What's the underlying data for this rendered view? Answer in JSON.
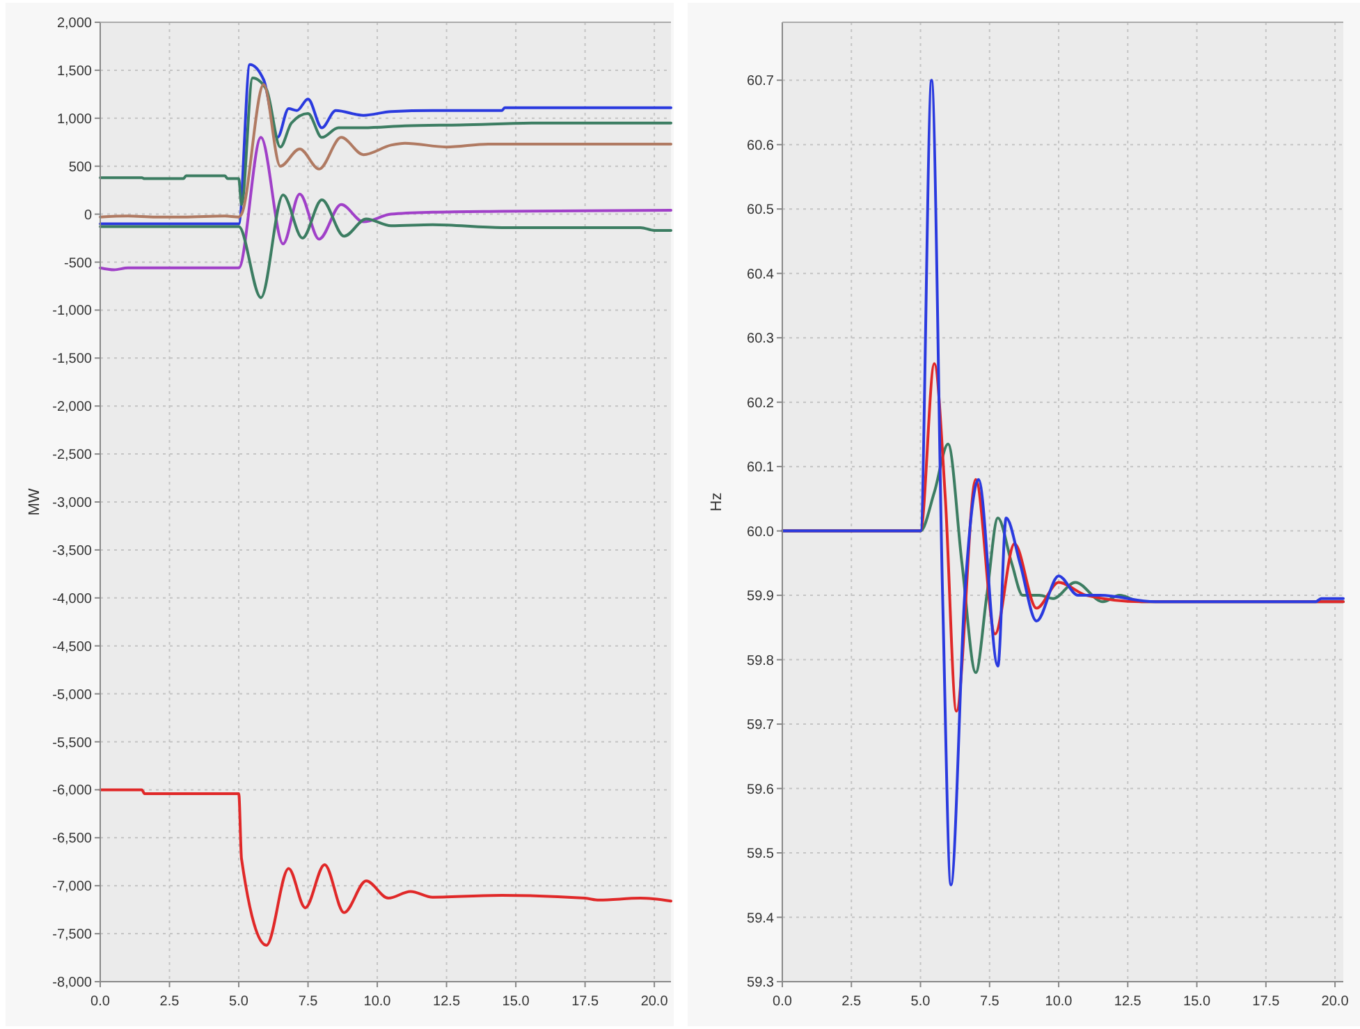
{
  "chart_data": [
    {
      "type": "line",
      "ylabel": "MW",
      "xlim": [
        0,
        20.6
      ],
      "ylim": [
        -8000,
        2000
      ],
      "xticks": [
        {
          "value": 0,
          "label": "0.0"
        },
        {
          "value": 2.5,
          "label": "2.5"
        },
        {
          "value": 5,
          "label": "5.0"
        },
        {
          "value": 7.5,
          "label": "7.5"
        },
        {
          "value": 10,
          "label": "10.0"
        },
        {
          "value": 12.5,
          "label": "12.5"
        },
        {
          "value": 15,
          "label": "15.0"
        },
        {
          "value": 17.5,
          "label": "17.5"
        },
        {
          "value": 20,
          "label": "20.0"
        }
      ],
      "yticks": [
        {
          "value": 2000,
          "label": "2,000"
        },
        {
          "value": 1500,
          "label": "1,500"
        },
        {
          "value": 1000,
          "label": "1,000"
        },
        500,
        0,
        -500,
        {
          "value": -1000,
          "label": "-1,000"
        },
        {
          "value": -1500,
          "label": "-1,500"
        },
        {
          "value": -2000,
          "label": "-2,000"
        },
        {
          "value": -2500,
          "label": "-2,500"
        },
        {
          "value": -3000,
          "label": "-3,000"
        },
        {
          "value": -3500,
          "label": "-3,500"
        },
        {
          "value": -4000,
          "label": "-4,000"
        },
        {
          "value": -4500,
          "label": "-4,500"
        },
        {
          "value": -5000,
          "label": "-5,000"
        },
        {
          "value": -5500,
          "label": "-5,500"
        },
        {
          "value": -6000,
          "label": "-6,000"
        },
        {
          "value": -6500,
          "label": "-6,500"
        },
        {
          "value": -7000,
          "label": "-7,000"
        },
        {
          "value": -7500,
          "label": "-7,500"
        },
        {
          "value": -8000,
          "label": "-8,000"
        }
      ],
      "grid": true,
      "line_style": "solid",
      "marker": "none",
      "series": [
        {
          "color": "#2a3adf",
          "x": [
            0,
            5,
            5.4,
            5.9,
            6.4,
            6.8,
            7.1,
            7.5,
            8,
            8.5,
            9.5,
            10.5,
            12,
            14.5,
            14.6,
            20.6
          ],
          "values": [
            -100,
            -100,
            1560,
            1400,
            800,
            1100,
            1080,
            1200,
            900,
            1080,
            1030,
            1070,
            1080,
            1080,
            1110,
            1110
          ]
        },
        {
          "color": "#3c7d62",
          "x": [
            0,
            1.5,
            1.6,
            3,
            3.1,
            4.5,
            4.6,
            5,
            5.1,
            5.5,
            6,
            6.5,
            6.9,
            7.5,
            8,
            8.6,
            9.5,
            11,
            13,
            16,
            20.6
          ],
          "values": [
            380,
            380,
            370,
            370,
            400,
            400,
            370,
            370,
            100,
            1420,
            1300,
            700,
            950,
            1050,
            800,
            900,
            900,
            920,
            930,
            950,
            950
          ]
        },
        {
          "color": "#b07a62",
          "x": [
            0,
            1,
            2,
            3,
            4.5,
            5,
            5.1,
            5.9,
            6.5,
            7.2,
            7.9,
            8.7,
            9.5,
            10.5,
            11,
            12.5,
            14,
            20.6
          ],
          "values": [
            -30,
            -20,
            -30,
            -30,
            -20,
            -30,
            0,
            1350,
            500,
            680,
            470,
            800,
            620,
            720,
            740,
            700,
            730,
            730
          ]
        },
        {
          "color": "#a040c8",
          "x": [
            0,
            0.5,
            1,
            5,
            5.8,
            6.6,
            7.2,
            7.9,
            8.7,
            9.5,
            10.5,
            12,
            14.5,
            20.6
          ],
          "values": [
            -560,
            -580,
            -560,
            -560,
            800,
            -310,
            210,
            -260,
            100,
            -80,
            0,
            20,
            30,
            40
          ]
        },
        {
          "color": "#3c7d62",
          "x": [
            0,
            5,
            5.8,
            6.6,
            7.3,
            8,
            8.8,
            9.6,
            10.5,
            12,
            14.5,
            19.5,
            20,
            20.6
          ],
          "values": [
            -130,
            -130,
            -870,
            200,
            -250,
            150,
            -230,
            -50,
            -120,
            -110,
            -140,
            -140,
            -170,
            -170
          ]
        },
        {
          "color": "#e02828",
          "x": [
            0,
            1.5,
            1.6,
            5,
            5.1,
            6,
            6.8,
            7.4,
            8.1,
            8.8,
            9.6,
            10.4,
            11.2,
            12,
            14.5,
            17.5,
            18,
            19.5,
            20.6
          ],
          "values": [
            -6000,
            -6000,
            -6040,
            -6040,
            -6720,
            -7620,
            -6820,
            -7230,
            -6780,
            -7280,
            -6950,
            -7130,
            -7060,
            -7120,
            -7100,
            -7130,
            -7150,
            -7130,
            -7160
          ]
        }
      ]
    },
    {
      "type": "line",
      "ylabel": "Hz",
      "xlim": [
        0,
        20.3
      ],
      "ylim": [
        59.3,
        60.79
      ],
      "xticks": [
        {
          "value": 0,
          "label": "0.0"
        },
        {
          "value": 2.5,
          "label": "2.5"
        },
        {
          "value": 5,
          "label": "5.0"
        },
        {
          "value": 7.5,
          "label": "7.5"
        },
        {
          "value": 10,
          "label": "10.0"
        },
        {
          "value": 12.5,
          "label": "12.5"
        },
        {
          "value": 15,
          "label": "15.0"
        },
        {
          "value": 17.5,
          "label": "17.5"
        },
        {
          "value": 20,
          "label": "20.0"
        }
      ],
      "yticks": [
        {
          "value": 60.7,
          "label": "60.7"
        },
        {
          "value": 60.6,
          "label": "60.6"
        },
        {
          "value": 60.5,
          "label": "60.5"
        },
        {
          "value": 60.4,
          "label": "60.4"
        },
        {
          "value": 60.3,
          "label": "60.3"
        },
        {
          "value": 60.2,
          "label": "60.2"
        },
        {
          "value": 60.1,
          "label": "60.1"
        },
        {
          "value": 60,
          "label": "60.0"
        },
        {
          "value": 59.9,
          "label": "59.9"
        },
        {
          "value": 59.8,
          "label": "59.8"
        },
        {
          "value": 59.7,
          "label": "59.7"
        },
        {
          "value": 59.6,
          "label": "59.6"
        },
        {
          "value": 59.5,
          "label": "59.5"
        },
        {
          "value": 59.4,
          "label": "59.4"
        },
        {
          "value": 59.3,
          "label": "59.3"
        }
      ],
      "grid": true,
      "line_style": "solid",
      "marker": "none",
      "series": [
        {
          "color": "#3c7d62",
          "x": [
            0,
            5,
            5.5,
            6,
            6.5,
            7,
            7.4,
            7.8,
            8.3,
            8.7,
            9.3,
            9.8,
            10.6,
            11.6,
            12.2,
            13,
            20.3
          ],
          "values": [
            60,
            60,
            60.06,
            60.135,
            59.95,
            59.78,
            59.9,
            60.02,
            59.95,
            59.9,
            59.9,
            59.895,
            59.92,
            59.89,
            59.9,
            59.89,
            59.89
          ]
        },
        {
          "color": "#e02828",
          "x": [
            0,
            5,
            5.5,
            5.9,
            6.3,
            7,
            7.7,
            8.4,
            9.2,
            10,
            11,
            13,
            20.3
          ],
          "values": [
            60,
            60,
            60.26,
            60.05,
            59.72,
            60.08,
            59.84,
            59.98,
            59.88,
            59.92,
            59.9,
            59.89,
            59.89
          ]
        },
        {
          "color": "#2a3adf",
          "x": [
            0,
            5,
            5.4,
            5.8,
            6.1,
            6.6,
            7.1,
            7.8,
            8.1,
            8.6,
            9.2,
            10,
            10.7,
            11.5,
            13.5,
            19.3,
            19.5,
            20.3
          ],
          "values": [
            60,
            60,
            60.7,
            59.9,
            59.45,
            59.9,
            60.08,
            59.79,
            60.02,
            59.95,
            59.86,
            59.93,
            59.9,
            59.9,
            59.89,
            59.89,
            59.895,
            59.895
          ]
        }
      ]
    }
  ]
}
